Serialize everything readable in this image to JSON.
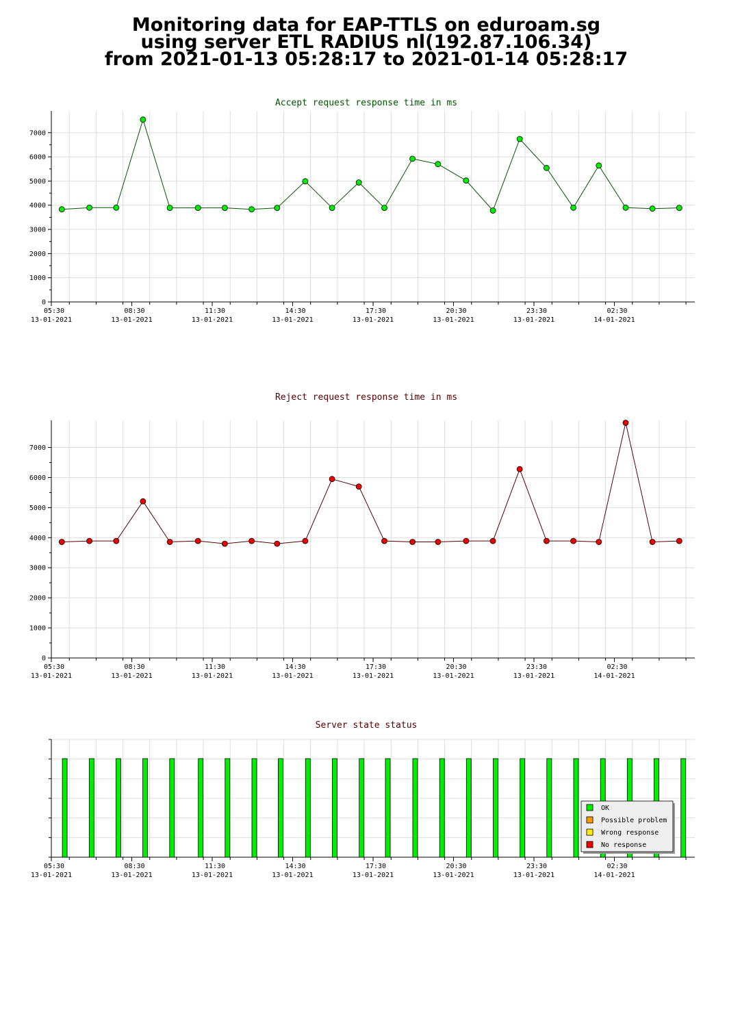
{
  "header": {
    "line1": "Monitoring data for EAP-TTLS on eduroam.sg",
    "line2": "using server ETL RADIUS nl(192.87.106.34)",
    "line3": "from 2021-01-13 05:28:17 to 2021-01-14 05:28:17"
  },
  "colors": {
    "accept_title": "#005500",
    "reject_title": "#550000",
    "status_title": "#550000",
    "accept_line": "#005500",
    "accept_marker": "#00ee00",
    "reject_line": "#550000",
    "reject_marker": "#ee0000",
    "ok_bar": "#00ee00",
    "grid": "#dddddd"
  },
  "chart_data": [
    {
      "type": "line",
      "title": "Accept request response time in ms",
      "ylim": [
        0,
        7900
      ],
      "yticks": [
        "0",
        "1000",
        "2000",
        "3000",
        "4000",
        "5000",
        "6000",
        "7000"
      ],
      "xlim": [
        5.33,
        29.33
      ],
      "xticks": [
        {
          "time": "05:30",
          "date": "13-01-2021"
        },
        {
          "time": "08:30",
          "date": "13-01-2021"
        },
        {
          "time": "11:30",
          "date": "13-01-2021"
        },
        {
          "time": "14:30",
          "date": "13-01-2021"
        },
        {
          "time": "17:30",
          "date": "13-01-2021"
        },
        {
          "time": "20:30",
          "date": "13-01-2021"
        },
        {
          "time": "23:30",
          "date": "13-01-2021"
        },
        {
          "time": "02:30",
          "date": "14-01-2021"
        }
      ],
      "grid": true,
      "series": [
        {
          "x": [
            5.72,
            6.75,
            7.75,
            8.75,
            9.75,
            10.8,
            11.8,
            12.8,
            13.75,
            14.8,
            15.8,
            16.8,
            17.75,
            18.8,
            19.75,
            20.8,
            21.8,
            22.8,
            23.8,
            24.8,
            25.75,
            26.75,
            27.75,
            28.75
          ],
          "values": [
            3830,
            3900,
            3900,
            7540,
            3890,
            3890,
            3890,
            3830,
            3890,
            4990,
            3890,
            4940,
            3890,
            5920,
            5700,
            5020,
            3780,
            6740,
            5540,
            3900,
            5640,
            3900,
            3860,
            3890
          ]
        }
      ]
    },
    {
      "type": "line",
      "title": "Reject request response time in ms",
      "ylim": [
        0,
        7900
      ],
      "yticks": [
        "0",
        "1000",
        "2000",
        "3000",
        "4000",
        "5000",
        "6000",
        "7000"
      ],
      "xlim": [
        5.33,
        29.33
      ],
      "xticks": [
        {
          "time": "05:30",
          "date": "13-01-2021"
        },
        {
          "time": "08:30",
          "date": "13-01-2021"
        },
        {
          "time": "11:30",
          "date": "13-01-2021"
        },
        {
          "time": "14:30",
          "date": "13-01-2021"
        },
        {
          "time": "17:30",
          "date": "13-01-2021"
        },
        {
          "time": "20:30",
          "date": "13-01-2021"
        },
        {
          "time": "23:30",
          "date": "13-01-2021"
        },
        {
          "time": "02:30",
          "date": "14-01-2021"
        }
      ],
      "grid": true,
      "series": [
        {
          "x": [
            5.72,
            6.75,
            7.75,
            8.75,
            9.75,
            10.8,
            11.8,
            12.8,
            13.75,
            14.8,
            15.8,
            16.8,
            17.75,
            18.8,
            19.75,
            20.8,
            21.8,
            22.8,
            23.8,
            24.8,
            25.75,
            26.75,
            27.75,
            28.75
          ],
          "values": [
            3860,
            3890,
            3890,
            5210,
            3860,
            3890,
            3800,
            3890,
            3800,
            3890,
            5950,
            5700,
            3890,
            3860,
            3860,
            3890,
            3890,
            6280,
            3890,
            3890,
            3860,
            7820,
            3860,
            3890
          ]
        }
      ]
    },
    {
      "type": "bar",
      "title": "Server state status",
      "xlim": [
        5.33,
        29.33
      ],
      "xticks": [
        {
          "time": "05:30",
          "date": "13-01-2021"
        },
        {
          "time": "08:30",
          "date": "13-01-2021"
        },
        {
          "time": "11:30",
          "date": "13-01-2021"
        },
        {
          "time": "14:30",
          "date": "13-01-2021"
        },
        {
          "time": "17:30",
          "date": "13-01-2021"
        },
        {
          "time": "20:30",
          "date": "13-01-2021"
        },
        {
          "time": "23:30",
          "date": "13-01-2021"
        },
        {
          "time": "02:30",
          "date": "14-01-2021"
        }
      ],
      "x": [
        5.83,
        6.83,
        7.83,
        8.83,
        9.83,
        10.9,
        11.9,
        12.9,
        13.88,
        14.9,
        15.9,
        16.9,
        17.88,
        18.9,
        19.9,
        20.9,
        21.9,
        22.9,
        23.9,
        24.9,
        25.9,
        26.9,
        27.9,
        28.9
      ],
      "values": [
        1,
        1,
        1,
        1,
        1,
        1,
        1,
        1,
        1,
        1,
        1,
        1,
        1,
        1,
        1,
        1,
        1,
        1,
        1,
        1,
        1,
        1,
        1,
        1
      ],
      "state": "OK",
      "legend": {
        "placement": "bottom-right",
        "entries": [
          {
            "label": "OK",
            "color": "#00ee00"
          },
          {
            "label": "Possible problem",
            "color": "#ff9900"
          },
          {
            "label": "Wrong response",
            "color": "#ffee00"
          },
          {
            "label": "No response",
            "color": "#ee0000"
          }
        ]
      }
    }
  ]
}
